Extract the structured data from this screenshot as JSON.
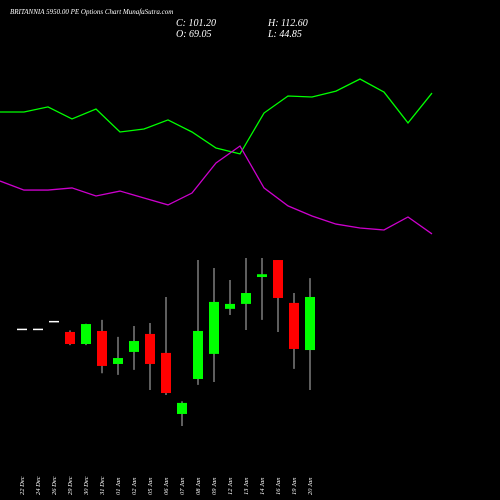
{
  "chart_data": {
    "type": "candlestick",
    "title": "BRITANNIA 5950.00 PE Options  Chart MunafaSutra.com",
    "ohlc_labels": {
      "close": "C: 101.20",
      "high": "H: 112.60",
      "open": "O: 69.05",
      "low": "L: 44.85"
    },
    "categories": [
      "22 Dec",
      "24 Dec",
      "26 Dec",
      "29 Dec",
      "30 Dec",
      "31 Dec",
      "01 Jan",
      "02 Jan",
      "05 Jan",
      "06 Jan",
      "07 Jan",
      "08 Jan",
      "09 Jan",
      "12 Jan",
      "13 Jan",
      "14 Jan",
      "16 Jan",
      "19 Jan",
      "20 Jan"
    ],
    "open": [
      82,
      82,
      86.7,
      80,
      72.7,
      80.6,
      60.6,
      67.9,
      78.8,
      67.3,
      30.3,
      51.5,
      66.7,
      94,
      97,
      113.3,
      123.6,
      97.6,
      69.05
    ],
    "close": [
      82,
      82,
      86.7,
      72.7,
      84.8,
      59.4,
      64.2,
      74.5,
      60.6,
      43,
      37,
      80.6,
      98.2,
      97,
      103.6,
      115,
      100.6,
      69.7,
      101.2
    ],
    "high": [
      82,
      82,
      86.7,
      81,
      85,
      87.3,
      77,
      83.6,
      85.4,
      101.2,
      38,
      123.6,
      118.8,
      111.5,
      124.8,
      124.8,
      123.6,
      103.6,
      112.6
    ],
    "low": [
      82,
      82,
      86.7,
      72,
      72,
      55,
      54,
      57,
      44.8,
      41.8,
      23,
      47.9,
      49.7,
      90.3,
      81.2,
      87.3,
      80,
      57.6,
      44.85
    ],
    "up_color": "#00ff00",
    "down_color": "#ff0000",
    "lines": [
      {
        "color": "#00ff00",
        "values": [
          213.3,
          213.3,
          216.4,
          209.1,
          215.1,
          201.2,
          203,
          208.5,
          201.2,
          191.5,
          187.9,
          212.7,
          223,
          222.4,
          226,
          233.3,
          225.4,
          206.7,
          224.8
        ]
      },
      {
        "color": "#cc00cc",
        "values": [
          171.5,
          166,
          166,
          167.3,
          162.4,
          165.4,
          161.2,
          157,
          164.2,
          182.4,
          192.7,
          167.3,
          156.4,
          150.3,
          145.4,
          143,
          141.8,
          149.7,
          139.4
        ]
      }
    ],
    "ylim": [
      2.4,
      281.2
    ]
  }
}
